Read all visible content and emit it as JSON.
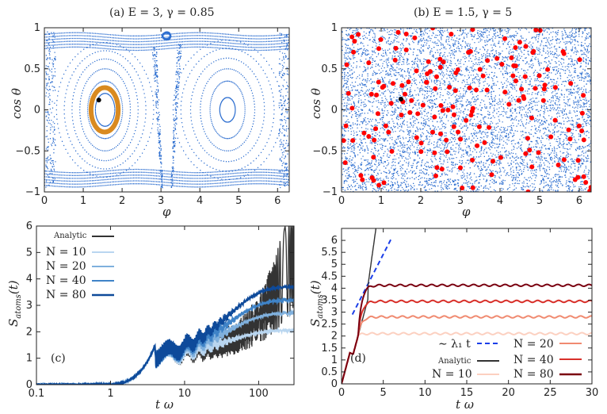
{
  "chart_data": [
    {
      "panel": "a",
      "type": "scatter",
      "title": "(a)   E = 3, γ = 0.85",
      "xlabel": "φ",
      "ylabel": "cos θ",
      "xlim": [
        0,
        6.3
      ],
      "ylim": [
        -1,
        1
      ],
      "xticks": [
        "0",
        "1",
        "2",
        "3",
        "4",
        "5",
        "6"
      ],
      "yticks": [
        "−1",
        "−0.5",
        "0",
        "0.5",
        "1"
      ],
      "series": [
        {
          "name": "chaotic-sea / tori",
          "color": "#2e6fd0",
          "description_points": "dense Poincaré section"
        },
        {
          "name": "highlighted orbit",
          "color": "#d98a20",
          "center": [
            1.55,
            0.0
          ],
          "rx": 0.35,
          "ry": 0.27
        },
        {
          "name": "initial point",
          "color": "#000000",
          "point": [
            1.4,
            0.12
          ]
        }
      ],
      "islands": [
        {
          "center": [
            1.55,
            0.0
          ],
          "rx": [
            0.25,
            0.45,
            0.65,
            0.85,
            1.05,
            1.25
          ],
          "ry": [
            0.2,
            0.35,
            0.5,
            0.62,
            0.72,
            0.82
          ]
        },
        {
          "center": [
            4.7,
            0.0
          ],
          "rx": [
            0.2,
            0.45,
            0.7,
            0.95,
            1.2,
            1.4
          ],
          "ry": [
            0.15,
            0.35,
            0.5,
            0.63,
            0.75,
            0.85
          ]
        },
        {
          "center": [
            3.14,
            0.9
          ],
          "rx": [
            0.1
          ],
          "ry": [
            0.05
          ]
        }
      ]
    },
    {
      "panel": "b",
      "type": "scatter",
      "title": "(b)   E = 1.5, γ = 5",
      "xlabel": "φ",
      "ylabel": "cos θ",
      "xlim": [
        0,
        6.3
      ],
      "ylim": [
        -1,
        1
      ],
      "xticks": [
        "0",
        "1",
        "2",
        "3",
        "4",
        "5",
        "6"
      ],
      "yticks": [
        "−1",
        "−0.5",
        "0",
        "0.5",
        "1"
      ],
      "series": [
        {
          "name": "chaotic sea",
          "color": "#2e6fd0"
        },
        {
          "name": "red markers",
          "color": "#ff0000"
        },
        {
          "name": "initial point",
          "color": "#000000",
          "point": [
            1.5,
            0.13
          ]
        }
      ]
    },
    {
      "panel": "c",
      "type": "line",
      "xscale": "log",
      "xlabel": "t ω",
      "ylabel": "S_atoms(t)",
      "xlim": [
        0.1,
        300
      ],
      "ylim": [
        0,
        6
      ],
      "xticks": [
        "0.1",
        "1",
        "10",
        "100"
      ],
      "yticks": [
        "0",
        "1",
        "2",
        "3",
        "4",
        "5",
        "6"
      ],
      "label": "(c)",
      "series": [
        {
          "name": "Analytic",
          "color": "#333333",
          "saturation": null
        },
        {
          "name": "N = 10",
          "color": "#b9d6f0",
          "saturation": 2.05
        },
        {
          "name": "N = 20",
          "color": "#7fb0dd",
          "saturation": 2.7
        },
        {
          "name": "N = 40",
          "color": "#3f83c7",
          "saturation": 3.2
        },
        {
          "name": "N = 80",
          "color": "#0e4a9a",
          "saturation": 3.7
        }
      ]
    },
    {
      "panel": "d",
      "type": "line",
      "xlabel": "t ω",
      "ylabel": "S_atoms(t)",
      "xlim": [
        0,
        30
      ],
      "ylim": [
        0,
        6.5
      ],
      "xticks": [
        "0",
        "5",
        "10",
        "15",
        "20",
        "25",
        "30"
      ],
      "yticks": [
        "0",
        "0.5",
        "1",
        "1.5",
        "2",
        "2.5",
        "3",
        "3.5",
        "4",
        "4.5",
        "5",
        "5.5",
        "6"
      ],
      "label": "(d)",
      "series": [
        {
          "name": "~ λ₁ t",
          "color": "#1a3ee8",
          "style": "dashed",
          "x": [
            1.3,
            6
          ],
          "y": [
            2.9,
            6.1
          ]
        },
        {
          "name": "Analytic",
          "color": "#333333"
        },
        {
          "name": "N = 10",
          "color": "#fcd0c0",
          "saturation": 2.1
        },
        {
          "name": "N = 20",
          "color": "#f08a70",
          "saturation": 2.8
        },
        {
          "name": "N = 40",
          "color": "#d8302a",
          "saturation": 3.45
        },
        {
          "name": "N = 80",
          "color": "#7a0010",
          "saturation": 4.12
        }
      ]
    }
  ],
  "legend_c": {
    "analytic": "Analytic",
    "n10": "N = 10",
    "n20": "N = 20",
    "n40": "N = 40",
    "n80": "N = 80"
  },
  "legend_d": {
    "lambda": "∼ λ₁ t",
    "analytic": "Analytic",
    "n10": "N = 10",
    "n20": "N = 20",
    "n40": "N = 40",
    "n80": "N = 80"
  }
}
